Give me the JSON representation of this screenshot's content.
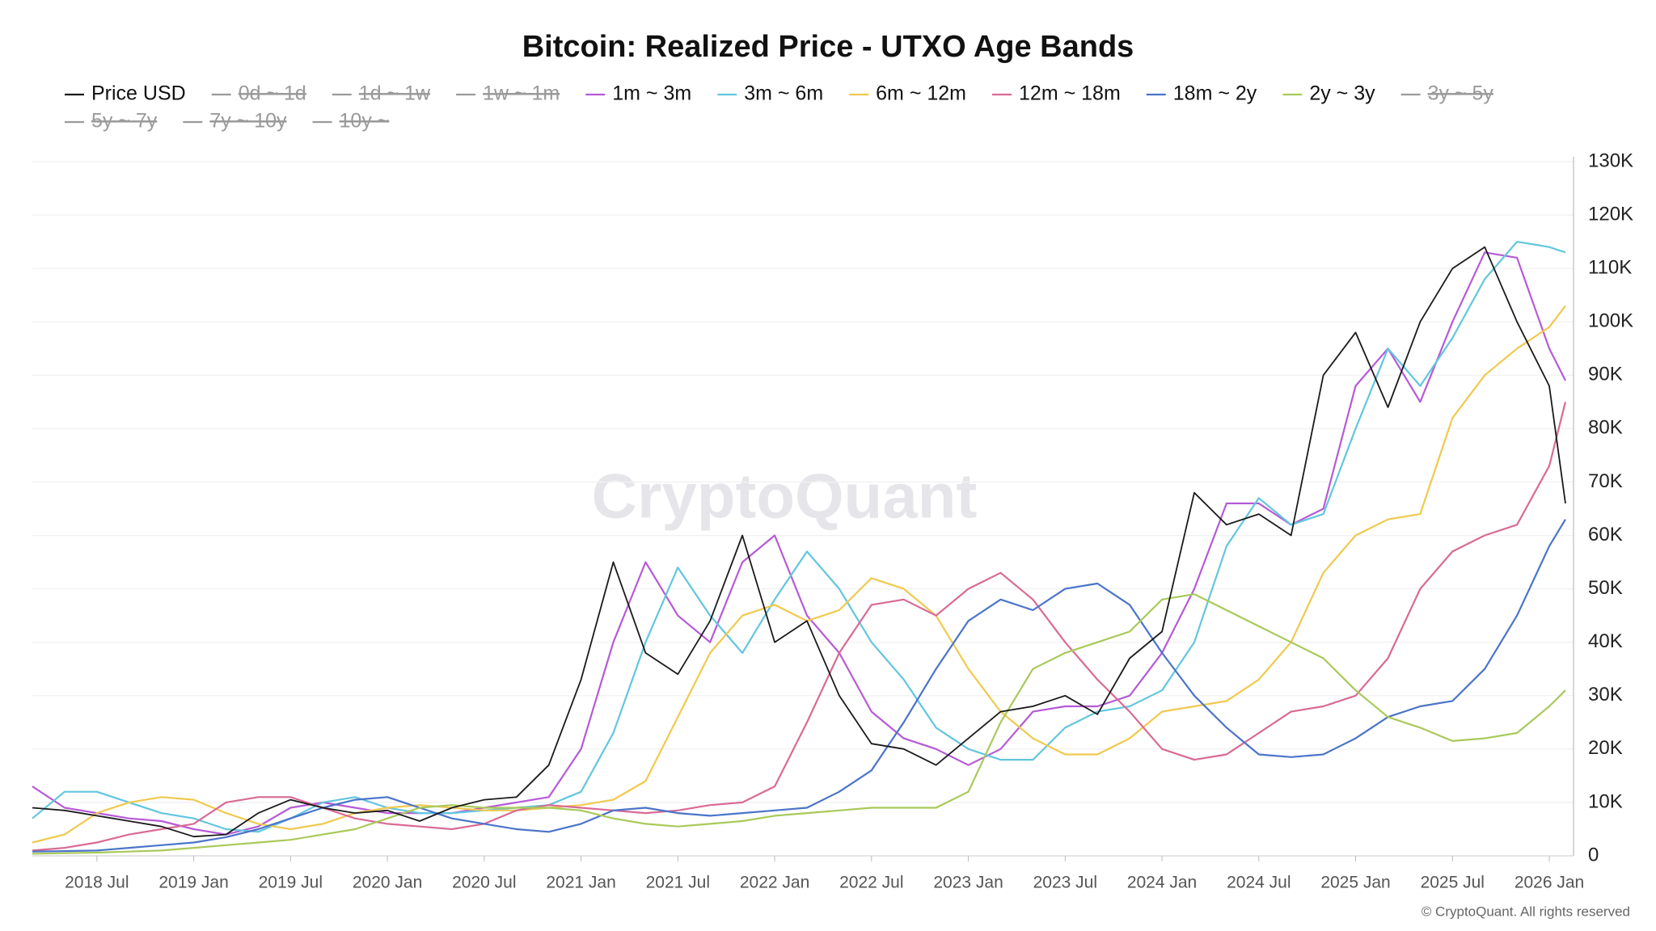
{
  "chart_data": {
    "type": "line",
    "title": "Bitcoin: Realized Price - UTXO Age Bands",
    "watermark": "CryptoQuant",
    "footer": "© CryptoQuant. All rights reserved",
    "x": [
      "2018-03",
      "2018-05",
      "2018-07",
      "2018-09",
      "2018-11",
      "2019-01",
      "2019-03",
      "2019-05",
      "2019-07",
      "2019-09",
      "2019-11",
      "2020-01",
      "2020-03",
      "2020-05",
      "2020-07",
      "2020-09",
      "2020-11",
      "2021-01",
      "2021-03",
      "2021-05",
      "2021-07",
      "2021-09",
      "2021-11",
      "2022-01",
      "2022-03",
      "2022-05",
      "2022-07",
      "2022-09",
      "2022-11",
      "2023-01",
      "2023-03",
      "2023-05",
      "2023-07",
      "2023-09",
      "2023-11",
      "2024-01",
      "2024-03",
      "2024-05",
      "2024-07",
      "2024-09",
      "2024-11",
      "2025-01",
      "2025-03",
      "2025-05",
      "2025-07",
      "2025-09",
      "2025-11",
      "2026-01",
      "2026-02"
    ],
    "xlim": [
      "2018-03",
      "2026-02"
    ],
    "xticks": [
      {
        "value": "2018-07",
        "label": "2018 Jul"
      },
      {
        "value": "2019-01",
        "label": "2019 Jan"
      },
      {
        "value": "2019-07",
        "label": "2019 Jul"
      },
      {
        "value": "2020-01",
        "label": "2020 Jan"
      },
      {
        "value": "2020-07",
        "label": "2020 Jul"
      },
      {
        "value": "2021-01",
        "label": "2021 Jan"
      },
      {
        "value": "2021-07",
        "label": "2021 Jul"
      },
      {
        "value": "2022-01",
        "label": "2022 Jan"
      },
      {
        "value": "2022-07",
        "label": "2022 Jul"
      },
      {
        "value": "2023-01",
        "label": "2023 Jan"
      },
      {
        "value": "2023-07",
        "label": "2023 Jul"
      },
      {
        "value": "2024-01",
        "label": "2024 Jan"
      },
      {
        "value": "2024-07",
        "label": "2024 Jul"
      },
      {
        "value": "2025-01",
        "label": "2025 Jan"
      },
      {
        "value": "2025-07",
        "label": "2025 Jul"
      },
      {
        "value": "2026-01",
        "label": "2026 Jan"
      }
    ],
    "ylim": [
      0,
      130000
    ],
    "yticks": [
      0,
      {
        "value": 10000,
        "label": "10K"
      },
      {
        "value": 20000,
        "label": "20K"
      },
      {
        "value": 30000,
        "label": "30K"
      },
      {
        "value": 40000,
        "label": "40K"
      },
      {
        "value": 50000,
        "label": "50K"
      },
      {
        "value": 60000,
        "label": "60K"
      },
      {
        "value": 70000,
        "label": "70K"
      },
      {
        "value": 80000,
        "label": "80K"
      },
      {
        "value": 90000,
        "label": "90K"
      },
      {
        "value": 100000,
        "label": "100K"
      },
      {
        "value": 110000,
        "label": "110K"
      },
      {
        "value": 120000,
        "label": "120K"
      },
      {
        "value": 130000,
        "label": "130K"
      }
    ],
    "y_axis_side": "right",
    "grid": true,
    "hidden_color": "#9a9a9a",
    "series": [
      {
        "name": "Price USD",
        "color": "#1a1a1a",
        "values": [
          9000,
          8500,
          7500,
          6500,
          5500,
          3600,
          4000,
          8000,
          10500,
          9000,
          8000,
          8500,
          6500,
          9000,
          10500,
          11000,
          17000,
          33000,
          55000,
          38000,
          34000,
          44000,
          60000,
          40000,
          44000,
          30000,
          21000,
          20000,
          17000,
          22000,
          27000,
          28000,
          30000,
          26500,
          37000,
          42000,
          68000,
          62000,
          64000,
          60000,
          90000,
          98000,
          84000,
          100000,
          110000,
          114000,
          100000,
          88000,
          66000
        ]
      },
      {
        "name": "0d ~ 1d",
        "color": "#9a9a9a",
        "hidden": true
      },
      {
        "name": "1d ~ 1w",
        "color": "#9a9a9a",
        "hidden": true
      },
      {
        "name": "1w ~ 1m",
        "color": "#9a9a9a",
        "hidden": true
      },
      {
        "name": "1m ~ 3m",
        "color": "#b65ad6",
        "values": [
          13000,
          9000,
          8000,
          7000,
          6500,
          5000,
          4000,
          5500,
          9000,
          10000,
          9000,
          8000,
          8000,
          8000,
          9000,
          10000,
          11000,
          20000,
          40000,
          55000,
          45000,
          40000,
          55000,
          60000,
          45000,
          38000,
          27000,
          22000,
          20000,
          17000,
          20000,
          27000,
          28000,
          28000,
          30000,
          38000,
          50000,
          66000,
          66000,
          62000,
          65000,
          88000,
          95000,
          85000,
          100000,
          113000,
          112000,
          95000,
          89000
        ]
      },
      {
        "name": "3m ~ 6m",
        "color": "#62c6de",
        "values": [
          7000,
          12000,
          12000,
          10000,
          8000,
          7000,
          5000,
          4500,
          7000,
          10000,
          11000,
          9000,
          8000,
          8000,
          8500,
          9000,
          9500,
          12000,
          23000,
          40000,
          54000,
          45000,
          38000,
          48000,
          57000,
          50000,
          40000,
          33000,
          24000,
          20000,
          18000,
          18000,
          24000,
          27000,
          28000,
          31000,
          40000,
          58000,
          67000,
          62000,
          64000,
          80000,
          95000,
          88000,
          97000,
          108000,
          115000,
          114000,
          113000
        ]
      },
      {
        "name": "6m ~ 12m",
        "color": "#f0c94e",
        "values": [
          2500,
          4000,
          8000,
          10000,
          11000,
          10500,
          8000,
          6000,
          5000,
          6000,
          8000,
          9000,
          9500,
          9000,
          8500,
          8500,
          9000,
          9500,
          10500,
          14000,
          26000,
          38000,
          45000,
          47000,
          44000,
          46000,
          52000,
          50000,
          45000,
          35000,
          27000,
          22000,
          19000,
          19000,
          22000,
          27000,
          28000,
          29000,
          33000,
          40000,
          53000,
          60000,
          63000,
          64000,
          82000,
          90000,
          95000,
          99000,
          103000
        ]
      },
      {
        "name": "12m ~ 18m",
        "color": "#d96a94",
        "values": [
          1000,
          1500,
          2500,
          4000,
          5000,
          6000,
          10000,
          11000,
          11000,
          9000,
          7000,
          6000,
          5500,
          5000,
          6000,
          8500,
          9500,
          9000,
          8500,
          8000,
          8500,
          9500,
          10000,
          13000,
          25000,
          38000,
          47000,
          48000,
          45000,
          50000,
          53000,
          48000,
          40000,
          33000,
          27000,
          20000,
          18000,
          19000,
          23000,
          27000,
          28000,
          30000,
          37000,
          50000,
          57000,
          60000,
          62000,
          73000,
          85000
        ]
      },
      {
        "name": "18m ~ 2y",
        "color": "#4a74c9",
        "values": [
          800,
          900,
          1000,
          1500,
          2000,
          2500,
          3500,
          5000,
          7000,
          9000,
          10500,
          11000,
          9000,
          7000,
          6000,
          5000,
          4500,
          6000,
          8500,
          9000,
          8000,
          7500,
          8000,
          8500,
          9000,
          12000,
          16000,
          25000,
          35000,
          44000,
          48000,
          46000,
          50000,
          51000,
          47000,
          38000,
          30000,
          24000,
          19000,
          18500,
          19000,
          22000,
          26000,
          28000,
          29000,
          35000,
          45000,
          58000,
          63000
        ]
      },
      {
        "name": "2y ~ 3y",
        "color": "#a9c95a",
        "values": [
          400,
          500,
          600,
          800,
          1000,
          1500,
          2000,
          2500,
          3000,
          4000,
          5000,
          7000,
          9000,
          9500,
          9000,
          9000,
          9000,
          8500,
          7000,
          6000,
          5500,
          6000,
          6500,
          7500,
          8000,
          8500,
          9000,
          9000,
          9000,
          12000,
          25000,
          35000,
          38000,
          40000,
          42000,
          48000,
          49000,
          46000,
          43000,
          40000,
          37000,
          31000,
          26000,
          24000,
          21500,
          22000,
          23000,
          28000,
          31000
        ]
      },
      {
        "name": "3y ~ 5y",
        "color": "#9a9a9a",
        "hidden": true
      },
      {
        "name": "5y ~ 7y",
        "color": "#9a9a9a",
        "hidden": true
      },
      {
        "name": "7y ~ 10y",
        "color": "#9a9a9a",
        "hidden": true
      },
      {
        "name": "10y ~",
        "color": "#9a9a9a",
        "hidden": true
      }
    ]
  }
}
